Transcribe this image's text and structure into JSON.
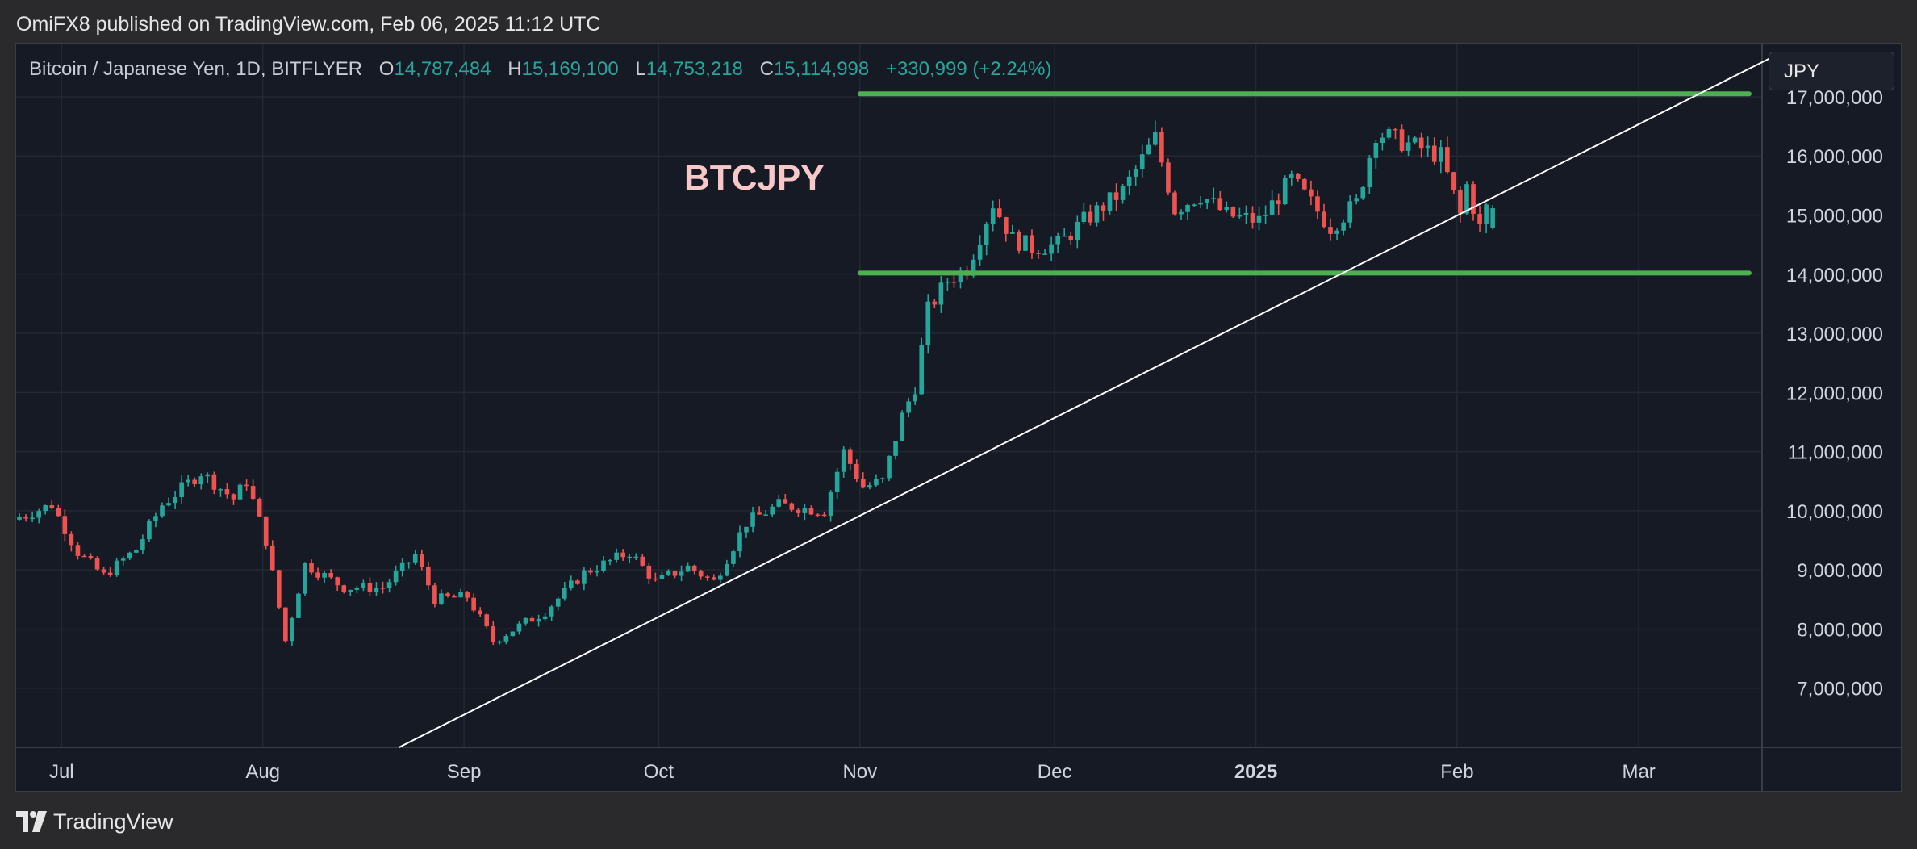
{
  "header": {
    "published_text": "OmiFX8 published on TradingView.com, Feb 06, 2025 11:12 UTC"
  },
  "legend": {
    "symbol": "Bitcoin / Japanese Yen, 1D, BITFLYER",
    "o_label": "O",
    "o_value": "14,787,484",
    "h_label": "H",
    "h_value": "15,169,100",
    "l_label": "L",
    "l_value": "14,753,218",
    "c_label": "C",
    "c_value": "15,114,998",
    "change": "+330,999 (+2.24%)"
  },
  "currency_button": "JPY",
  "footer": {
    "brand": "TradingView"
  },
  "colors": {
    "up": "#26a69a",
    "down": "#ef5350",
    "level_lines": "#4caf50",
    "trendline": "#ffffff",
    "annotation": "#f8c8c8",
    "background": "#161a25"
  },
  "chart_data": {
    "type": "candlestick",
    "annotation": "BTCJPY",
    "ylim": [
      6000000,
      17900000
    ],
    "y_ticks": [
      {
        "value": 7000000,
        "label": "7,000,000"
      },
      {
        "value": 8000000,
        "label": "8,000,000"
      },
      {
        "value": 9000000,
        "label": "9,000,000"
      },
      {
        "value": 10000000,
        "label": "10,000,000"
      },
      {
        "value": 11000000,
        "label": "11,000,000"
      },
      {
        "value": 12000000,
        "label": "12,000,000"
      },
      {
        "value": 13000000,
        "label": "13,000,000"
      },
      {
        "value": 14000000,
        "label": "14,000,000"
      },
      {
        "value": 15000000,
        "label": "15,000,000"
      },
      {
        "value": 16000000,
        "label": "16,000,000"
      },
      {
        "value": 17000000,
        "label": "17,000,000"
      }
    ],
    "x_range": [
      "2024-06-24",
      "2025-03-20"
    ],
    "x_ticks": [
      {
        "date": "2024-07-01",
        "label": "Jul",
        "bold": false
      },
      {
        "date": "2024-08-01",
        "label": "Aug",
        "bold": false
      },
      {
        "date": "2024-09-01",
        "label": "Sep",
        "bold": false
      },
      {
        "date": "2024-10-01",
        "label": "Oct",
        "bold": false
      },
      {
        "date": "2024-11-01",
        "label": "Nov",
        "bold": false
      },
      {
        "date": "2024-12-01",
        "label": "Dec",
        "bold": false
      },
      {
        "date": "2025-01-01",
        "label": "2025",
        "bold": true
      },
      {
        "date": "2025-02-01",
        "label": "Feb",
        "bold": false
      },
      {
        "date": "2025-03-01",
        "label": "Mar",
        "bold": false
      }
    ],
    "horizontal_levels": [
      {
        "price": 17050000,
        "from": "2024-11-01",
        "to": "2025-03-18"
      },
      {
        "price": 14020000,
        "from": "2024-11-01",
        "to": "2025-03-18"
      }
    ],
    "trendline": {
      "from": {
        "date": "2024-08-22",
        "price": 6000000
      },
      "to": {
        "date": "2025-03-23",
        "price": 17750000
      }
    },
    "price_path": [
      [
        "2024-06-24",
        9850000
      ],
      [
        "2024-06-30",
        10100000
      ],
      [
        "2024-07-04",
        9300000
      ],
      [
        "2024-07-08",
        8900000
      ],
      [
        "2024-07-13",
        9350000
      ],
      [
        "2024-07-17",
        10100000
      ],
      [
        "2024-07-23",
        10650000
      ],
      [
        "2024-07-28",
        10200000
      ],
      [
        "2024-07-30",
        10500000
      ],
      [
        "2024-08-02",
        9500000
      ],
      [
        "2024-08-05",
        7800000
      ],
      [
        "2024-08-08",
        9100000
      ],
      [
        "2024-08-14",
        8700000
      ],
      [
        "2024-08-20",
        8700000
      ],
      [
        "2024-08-25",
        9250000
      ],
      [
        "2024-08-28",
        8500000
      ],
      [
        "2024-09-02",
        8550000
      ],
      [
        "2024-09-06",
        7800000
      ],
      [
        "2024-09-10",
        8050000
      ],
      [
        "2024-09-14",
        8300000
      ],
      [
        "2024-09-20",
        8950000
      ],
      [
        "2024-09-27",
        9300000
      ],
      [
        "2024-10-01",
        8800000
      ],
      [
        "2024-10-06",
        9050000
      ],
      [
        "2024-10-10",
        8800000
      ],
      [
        "2024-10-15",
        9800000
      ],
      [
        "2024-10-20",
        10100000
      ],
      [
        "2024-10-27",
        10000000
      ],
      [
        "2024-10-30",
        11000000
      ],
      [
        "2024-11-02",
        10400000
      ],
      [
        "2024-11-05",
        10500000
      ],
      [
        "2024-11-08",
        11600000
      ],
      [
        "2024-11-10",
        12100000
      ],
      [
        "2024-11-12",
        13400000
      ],
      [
        "2024-11-15",
        13900000
      ],
      [
        "2024-11-18",
        14100000
      ],
      [
        "2024-11-22",
        15200000
      ],
      [
        "2024-11-25",
        14600000
      ],
      [
        "2024-11-28",
        14450000
      ],
      [
        "2024-12-02",
        14500000
      ],
      [
        "2024-12-06",
        14900000
      ],
      [
        "2024-12-12",
        15400000
      ],
      [
        "2024-12-17",
        16300000
      ],
      [
        "2024-12-20",
        15100000
      ],
      [
        "2024-12-24",
        15350000
      ],
      [
        "2024-12-28",
        15000000
      ],
      [
        "2025-01-02",
        14900000
      ],
      [
        "2025-01-07",
        15600000
      ],
      [
        "2025-01-13",
        14800000
      ],
      [
        "2025-01-17",
        15200000
      ],
      [
        "2025-01-20",
        16400000
      ],
      [
        "2025-01-25",
        16200000
      ],
      [
        "2025-01-30",
        16000000
      ],
      [
        "2025-02-02",
        15000000
      ],
      [
        "2025-02-03",
        15500000
      ],
      [
        "2025-02-05",
        14780000
      ],
      [
        "2025-02-06",
        15115000
      ]
    ],
    "last_candle": {
      "date": "2025-02-06",
      "open": 14787484,
      "high": 15169100,
      "low": 14753218,
      "close": 15114998
    }
  }
}
